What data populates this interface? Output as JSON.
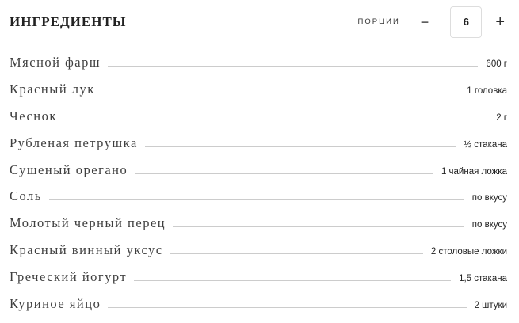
{
  "header": {
    "title": "ИНГРЕДИЕНТЫ",
    "servings": {
      "label": "порции",
      "value": "6",
      "decrease_label": "−",
      "increase_label": "+"
    }
  },
  "ingredients": [
    {
      "name": "Мясной фарш",
      "amount": "600 г"
    },
    {
      "name": "Красный лук",
      "amount": "1 головка"
    },
    {
      "name": "Чеснок",
      "amount": "2 г"
    },
    {
      "name": "Рубленая петрушка",
      "amount": "½ стакана"
    },
    {
      "name": "Сушеный орегано",
      "amount": "1 чайная ложка"
    },
    {
      "name": "Соль",
      "amount": "по вкусу"
    },
    {
      "name": "Молотый черный перец",
      "amount": "по вкусу"
    },
    {
      "name": "Красный винный уксус",
      "amount": "2 столовые ложки"
    },
    {
      "name": "Греческий йогурт",
      "amount": "1,5 стакана"
    },
    {
      "name": "Куриное яйцо",
      "amount": "2 штуки"
    }
  ],
  "colors": {
    "background": "#ffffff",
    "title_text": "#222222",
    "ingredient_text": "#3f3f3f",
    "amount_text": "#222222",
    "leader_line": "#cccccc",
    "stepper_border": "#dddddd"
  }
}
